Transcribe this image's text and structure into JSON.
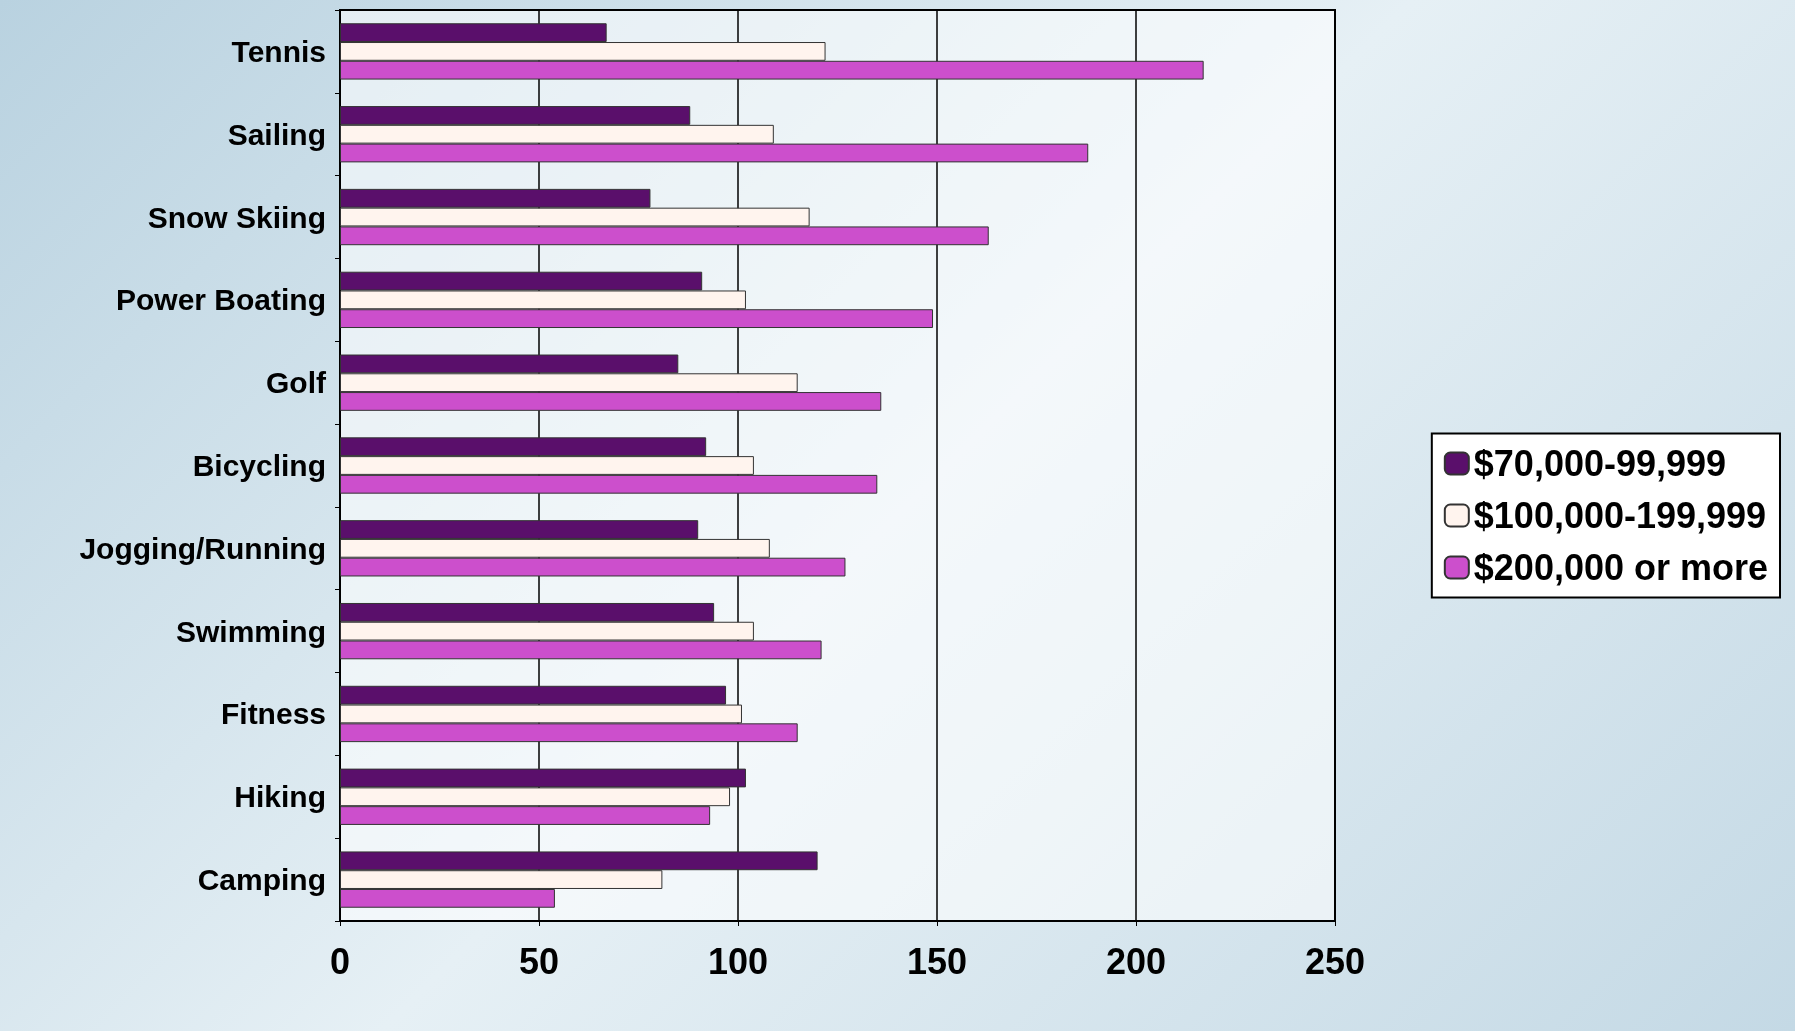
{
  "chart_data": {
    "type": "bar",
    "orientation": "horizontal",
    "categories": [
      "Tennis",
      "Sailing",
      "Snow Skiing",
      "Power Boating",
      "Golf",
      "Bicycling",
      "Jogging/Running",
      "Swimming",
      "Fitness",
      "Hiking",
      "Camping"
    ],
    "series": [
      {
        "name": "$70,000-99,999",
        "color": "#5a0f6b",
        "values": [
          67,
          88,
          78,
          91,
          85,
          92,
          90,
          94,
          97,
          102,
          120
        ]
      },
      {
        "name": "$100,000-199,999",
        "color": "#fff4ee",
        "values": [
          122,
          109,
          118,
          102,
          115,
          104,
          108,
          104,
          101,
          98,
          81
        ]
      },
      {
        "name": "$200,000 or more",
        "color": "#cc4fcc",
        "values": [
          217,
          188,
          163,
          149,
          136,
          135,
          127,
          121,
          115,
          93,
          54
        ]
      }
    ],
    "xlim": [
      0,
      250
    ],
    "xticks": [
      0,
      50,
      100,
      150,
      200,
      250
    ],
    "grid": "x",
    "legend": "right"
  }
}
